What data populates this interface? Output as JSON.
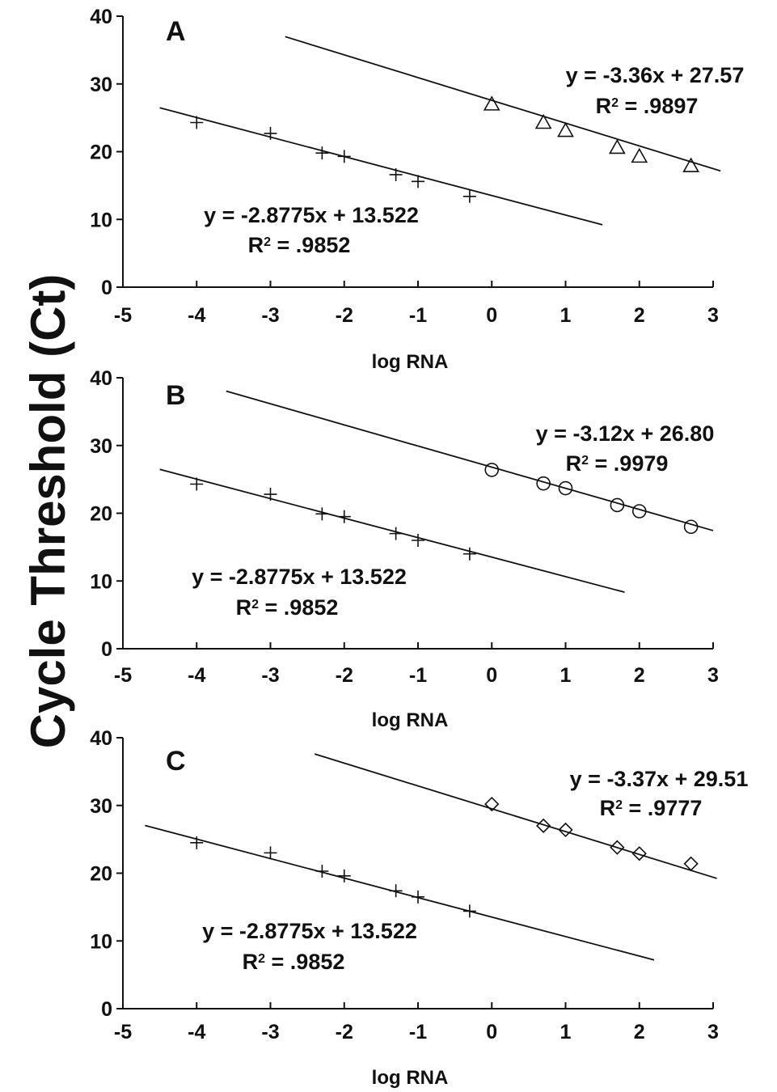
{
  "ylabel": "Cycle Threshold (Ct)",
  "chart_data": [
    {
      "type": "scatter",
      "panel_label": "A",
      "xlabel": "log RNA",
      "xlim": [
        -5,
        3
      ],
      "ylim": [
        0,
        40
      ],
      "xticks": [
        -5,
        -4,
        -3,
        -2,
        -1,
        0,
        1,
        2,
        3
      ],
      "yticks": [
        0,
        10,
        20,
        30,
        40
      ],
      "series": [
        {
          "marker": "plus",
          "x": [
            -4,
            -3,
            -2.3,
            -2,
            -1.3,
            -1,
            -0.3
          ],
          "y": [
            24.3,
            22.7,
            19.8,
            19.3,
            16.6,
            15.6,
            13.4
          ],
          "fit": {
            "slope": -2.8775,
            "intercept": 13.522,
            "x_range": [
              -4.5,
              1.5
            ]
          },
          "equation": "y = -2.8775x + 13.522",
          "r2_label": "R",
          "r2_sup": "2",
          "r2_value": " = .9852"
        },
        {
          "marker": "triangle",
          "x": [
            0,
            0.7,
            1,
            1.7,
            2,
            2.7
          ],
          "y": [
            27.0,
            24.3,
            23.1,
            20.6,
            19.3,
            17.9
          ],
          "fit": {
            "slope": -3.36,
            "intercept": 27.57,
            "x_range": [
              -2.8,
              3.1
            ]
          },
          "equation": "y = -3.36x + 27.57",
          "r2_label": "R",
          "r2_sup": "2",
          "r2_value": " = .9897"
        }
      ]
    },
    {
      "type": "scatter",
      "panel_label": "B",
      "xlabel": "log RNA",
      "xlim": [
        -5,
        3
      ],
      "ylim": [
        0,
        40
      ],
      "xticks": [
        -5,
        -4,
        -3,
        -2,
        -1,
        0,
        1,
        2,
        3
      ],
      "yticks": [
        0,
        10,
        20,
        30,
        40
      ],
      "series": [
        {
          "marker": "plus",
          "x": [
            -4,
            -3,
            -2.3,
            -2,
            -1.3,
            -1,
            -0.3
          ],
          "y": [
            24.3,
            22.8,
            19.9,
            19.5,
            17.0,
            16.0,
            14.0
          ],
          "fit": {
            "slope": -2.8775,
            "intercept": 13.522,
            "x_range": [
              -4.5,
              1.8
            ]
          },
          "equation": "y = -2.8775x + 13.522",
          "r2_label": "R",
          "r2_sup": "2",
          "r2_value": " = .9852"
        },
        {
          "marker": "circle",
          "x": [
            0,
            0.7,
            1,
            1.7,
            2,
            2.7
          ],
          "y": [
            26.4,
            24.4,
            23.7,
            21.2,
            20.3,
            18.0
          ],
          "fit": {
            "slope": -3.12,
            "intercept": 26.8,
            "x_range": [
              -3.6,
              3.0
            ]
          },
          "equation": "y = -3.12x + 26.80",
          "r2_label": "R",
          "r2_sup": "2",
          "r2_value": " = .9979"
        }
      ]
    },
    {
      "type": "scatter",
      "panel_label": "C",
      "xlabel": "log RNA",
      "xlim": [
        -5,
        3
      ],
      "ylim": [
        0,
        40
      ],
      "xticks": [
        -5,
        -4,
        -3,
        -2,
        -1,
        0,
        1,
        2,
        3
      ],
      "yticks": [
        0,
        10,
        20,
        30,
        40
      ],
      "series": [
        {
          "marker": "plus",
          "x": [
            -4,
            -3,
            -2.3,
            -2,
            -1.3,
            -1,
            -0.3
          ],
          "y": [
            24.5,
            23.0,
            20.3,
            19.6,
            17.4,
            16.5,
            14.4
          ],
          "fit": {
            "slope": -2.8775,
            "intercept": 13.522,
            "x_range": [
              -4.7,
              2.2
            ]
          },
          "equation": "y = -2.8775x + 13.522",
          "r2_label": "R",
          "r2_sup": "2",
          "r2_value": " = .9852"
        },
        {
          "marker": "diamond",
          "x": [
            0,
            0.7,
            1,
            1.7,
            2,
            2.7
          ],
          "y": [
            30.2,
            27.0,
            26.4,
            23.8,
            22.9,
            21.4
          ],
          "fit": {
            "slope": -3.37,
            "intercept": 29.51,
            "x_range": [
              -2.4,
              3.05
            ]
          },
          "equation": "y = -3.37x + 29.51",
          "r2_label": "R",
          "r2_sup": "2",
          "r2_value": " = .9777"
        }
      ]
    }
  ]
}
